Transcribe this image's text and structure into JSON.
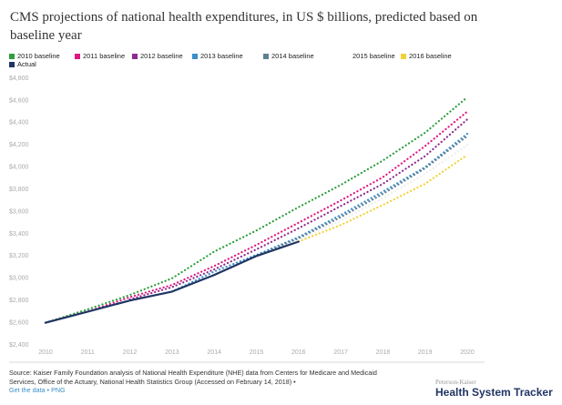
{
  "chart_data": {
    "type": "line",
    "title": "CMS projections of national health expenditures, in US $ billions, predicted based on baseline year",
    "categories": [
      "2010",
      "2011",
      "2012",
      "2013",
      "2014",
      "2015",
      "2016",
      "2017",
      "2018",
      "2019",
      "2020"
    ],
    "series": [
      {
        "name": "2010 baseline",
        "color": "#2e9e3e",
        "style": "dotted",
        "values": [
          2600,
          2720,
          2850,
          3000,
          3240,
          3430,
          3640,
          3840,
          4060,
          4310,
          4630
        ]
      },
      {
        "name": "2011 baseline",
        "color": "#e0167f",
        "style": "dotted",
        "values": [
          2600,
          2700,
          2830,
          2940,
          3110,
          3300,
          3500,
          3700,
          3910,
          4190,
          4500
        ]
      },
      {
        "name": "2012 baseline",
        "color": "#8e2c8e",
        "style": "dotted",
        "values": [
          null,
          null,
          2810,
          2920,
          3080,
          3260,
          3450,
          3650,
          3850,
          4100,
          4430
        ]
      },
      {
        "name": "2013 baseline",
        "color": "#3a8fc9",
        "style": "dotted",
        "values": [
          null,
          null,
          null,
          2880,
          3060,
          3210,
          3370,
          3570,
          3780,
          4000,
          4300
        ]
      },
      {
        "name": "2014 baseline",
        "color": "#5f7f94",
        "style": "dotted",
        "values": [
          null,
          null,
          null,
          null,
          3030,
          3200,
          3360,
          3550,
          3760,
          3990,
          4280
        ]
      },
      {
        "name": "2015 baseline",
        "color": "#eeeeee",
        "style": "dotted",
        "values": [
          null,
          null,
          null,
          null,
          null,
          3200,
          3340,
          3520,
          3720,
          3940,
          4200
        ]
      },
      {
        "name": "2016 baseline",
        "color": "#f2d23a",
        "style": "dotted",
        "values": [
          null,
          null,
          null,
          null,
          null,
          null,
          3330,
          3480,
          3660,
          3850,
          4110
        ]
      },
      {
        "name": "Actual",
        "color": "#1f3563",
        "style": "solid",
        "values": [
          2600,
          2700,
          2800,
          2880,
          3030,
          3200,
          3330,
          null,
          null,
          null,
          null
        ]
      }
    ],
    "ylim": [
      2400,
      4800
    ],
    "yticks": [
      {
        "value": 2400,
        "label": "$2,400"
      },
      {
        "value": 2600,
        "label": "$2,600"
      },
      {
        "value": 2800,
        "label": "$2,800"
      },
      {
        "value": 3000,
        "label": "$3,000"
      },
      {
        "value": 3200,
        "label": "$3,200"
      },
      {
        "value": 3400,
        "label": "$3,400"
      },
      {
        "value": 3600,
        "label": "$3,600"
      },
      {
        "value": 3800,
        "label": "$3,800"
      },
      {
        "value": 4000,
        "label": "$4,000"
      },
      {
        "value": 4200,
        "label": "$4,200"
      },
      {
        "value": 4400,
        "label": "$4,400"
      },
      {
        "value": 4600,
        "label": "$4,600"
      },
      {
        "value": 4800,
        "label": "$4,800"
      }
    ],
    "grid": false
  },
  "footer": {
    "source": "Source: Kaiser Family Foundation analysis of National Health Expenditure (NHE) data from Centers for Medicare and Medicaid Services, Office of the Actuary, National Health Statistics Group (Accessed on February 14, 2018) •",
    "links": "Get the data • PNG",
    "brand_small": "Peterson-Kaiser",
    "brand": "Health System Tracker"
  }
}
